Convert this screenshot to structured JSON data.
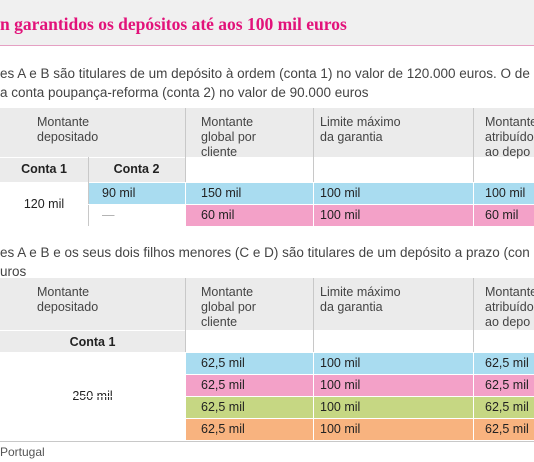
{
  "header": {
    "title": "n garantidos os depósitos até aos 100 mil euros"
  },
  "section_1": {
    "text": [
      "es A e B são titulares de um depósito à ordem (conta 1) no valor de 120.000 euros. O de",
      "a conta poupança-reforma (conta 2) no valor de 90.000 euros"
    ],
    "table": {
      "columns": [
        [
          "Montante",
          "depositado"
        ],
        [
          "Montante",
          "global por",
          "cliente"
        ],
        [
          "Limite máximo",
          "da garantia"
        ],
        [
          "Montante",
          "atribuído",
          "ao depo"
        ]
      ],
      "subheaders": [
        "Conta 1",
        "Conta 2"
      ],
      "deposit": "120 mil",
      "rows": [
        [
          "90 mil",
          "150 mil",
          "100 mil",
          "100 mil"
        ],
        [
          "—",
          "60 mil",
          "100 mil",
          "60 mil"
        ]
      ]
    }
  },
  "section_2": {
    "text": [
      "es A e B e os seus dois filhos menores (C e D) são titulares de um depósito a prazo (con",
      "uros"
    ],
    "table": {
      "columns": [
        [
          "Montante",
          "depositado"
        ],
        [
          "Montante",
          "global por",
          "cliente"
        ],
        [
          "Limite máximo",
          "da garantia"
        ],
        [
          "Montante",
          "atribuído",
          "ao depo"
        ]
      ],
      "subheaders": [
        "Conta 1"
      ],
      "deposit": "250 mil",
      "rows": [
        [
          "62,5 mil",
          "100 mil",
          "62,5 mil"
        ],
        [
          "62,5 mil",
          "100 mil",
          "62,5 mil"
        ],
        [
          "62,5 mil",
          "100 mil",
          "62,5 mil"
        ],
        [
          "62,5 mil",
          "100 mil",
          "62,5 mil"
        ]
      ]
    }
  },
  "footer": {
    "source": "Portugal"
  }
}
